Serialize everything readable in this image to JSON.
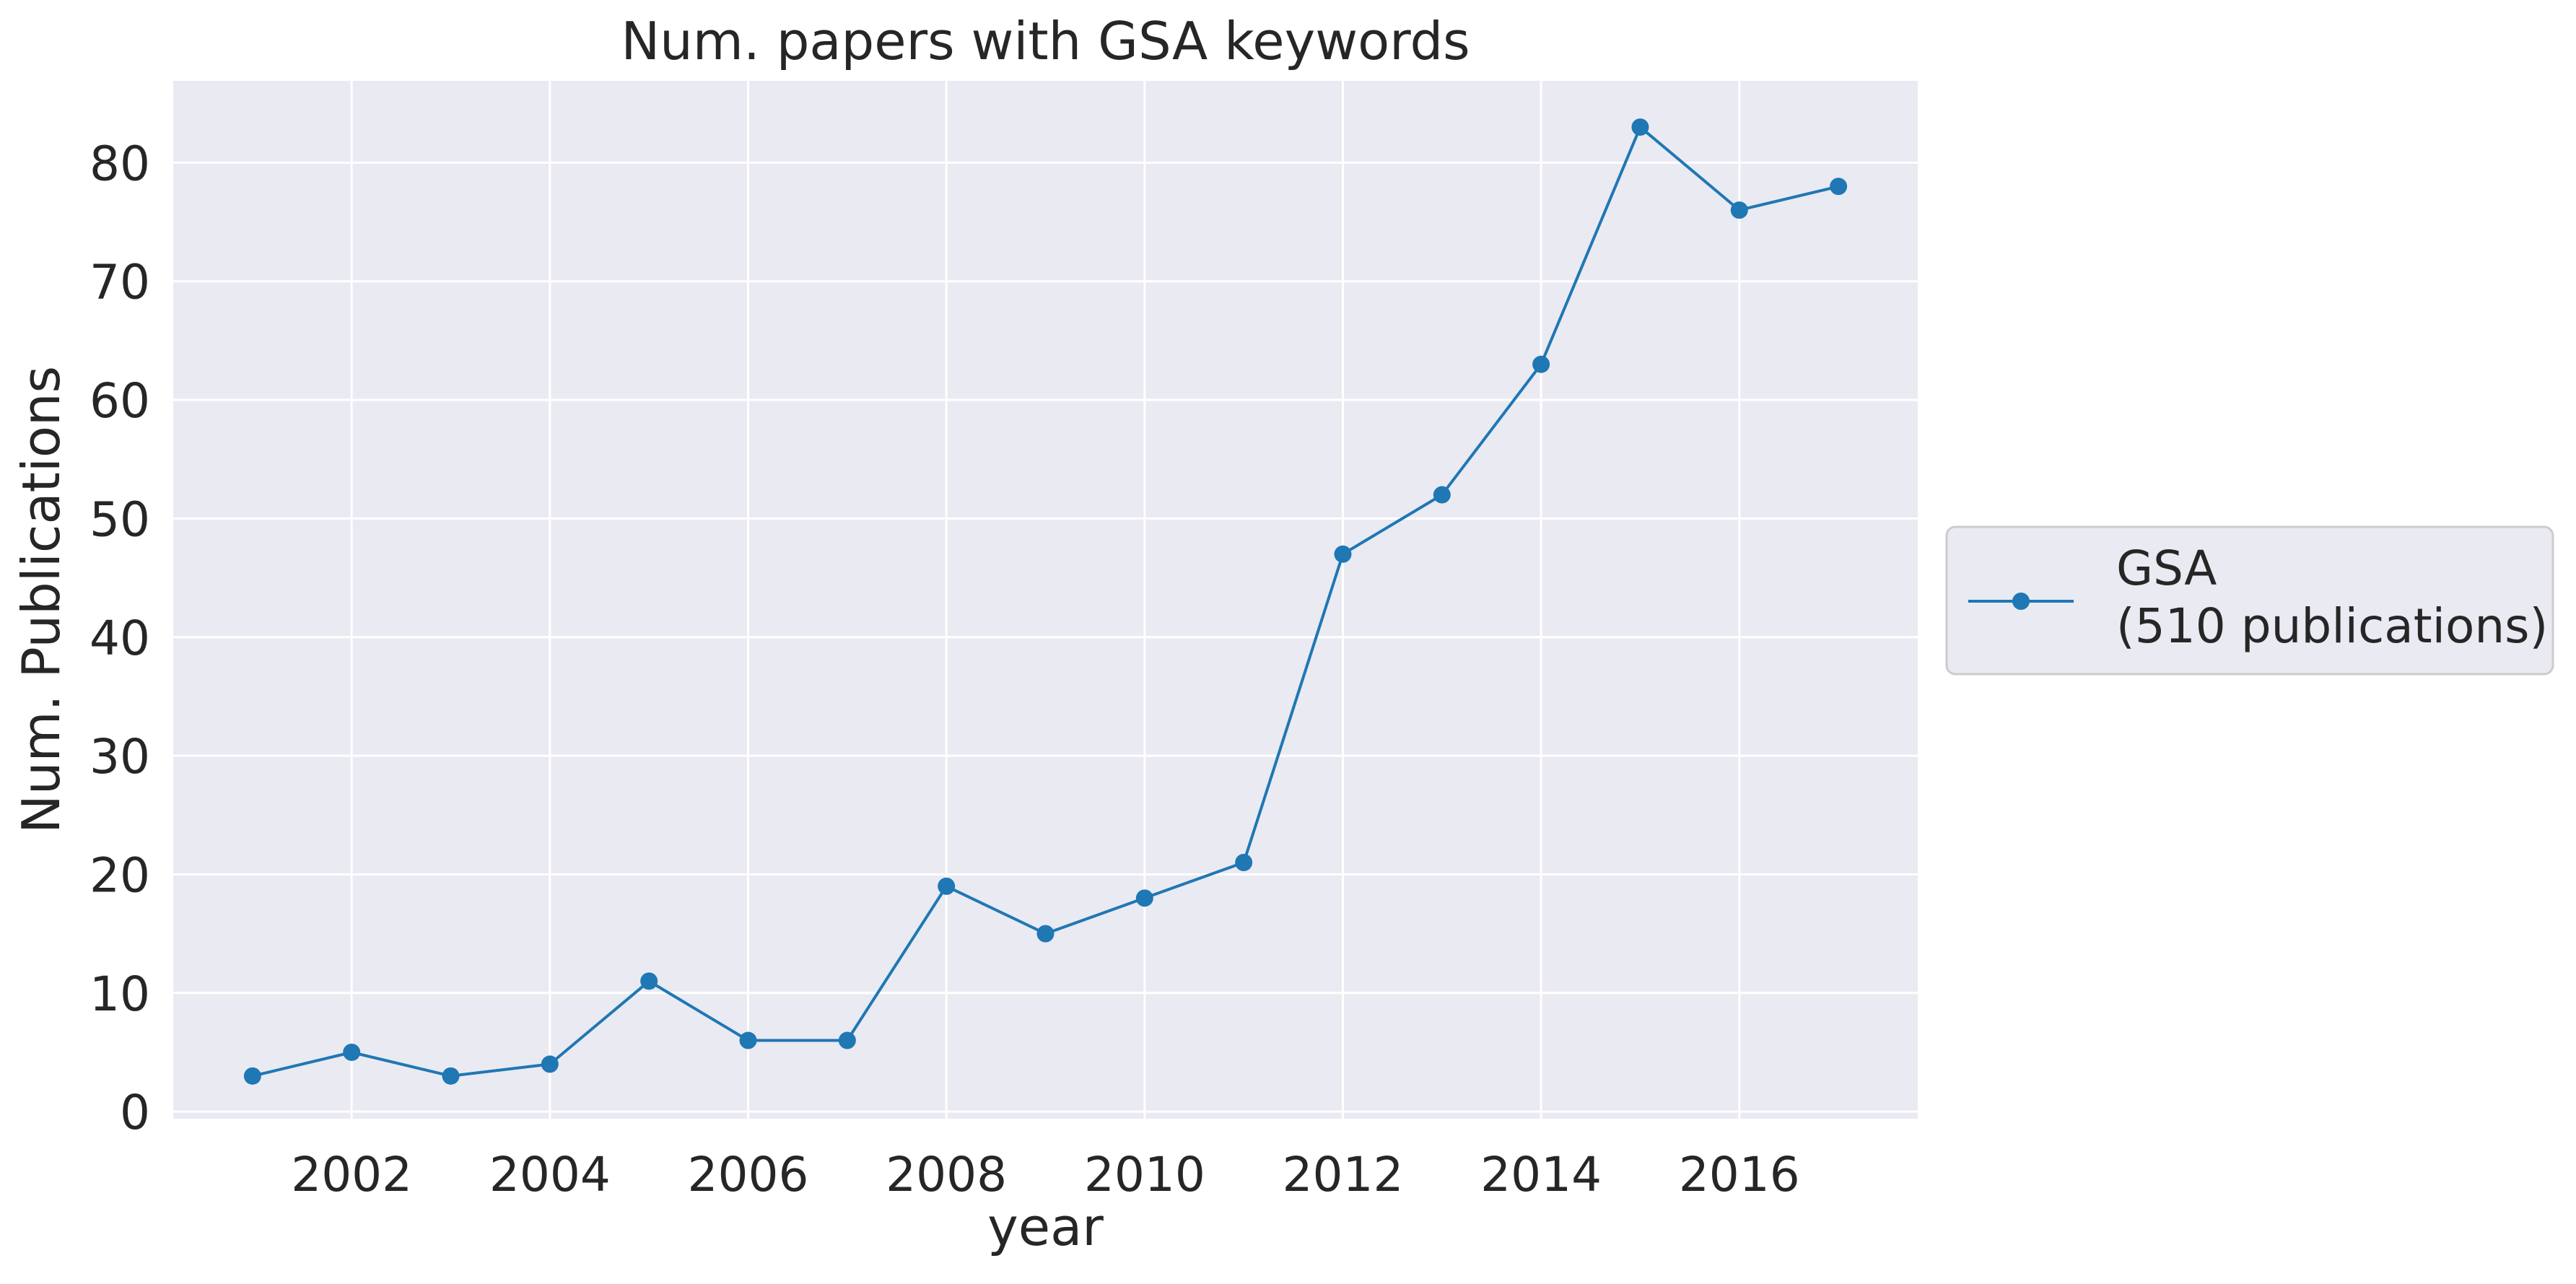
{
  "chart_data": {
    "type": "line",
    "title": "Num. papers with GSA keywords",
    "xlabel": "year",
    "ylabel": "Num. Publications",
    "x": [
      2001,
      2002,
      2003,
      2004,
      2005,
      2006,
      2007,
      2008,
      2009,
      2010,
      2011,
      2012,
      2013,
      2014,
      2015,
      2016,
      2017
    ],
    "series": [
      {
        "name": "GSA\n(510 publications)",
        "values": [
          3,
          5,
          3,
          4,
          11,
          6,
          6,
          19,
          15,
          18,
          21,
          47,
          52,
          63,
          83,
          76,
          78
        ],
        "color": "#1f77b4",
        "marker": "circle"
      }
    ],
    "xticks": [
      2002,
      2004,
      2006,
      2008,
      2010,
      2012,
      2014,
      2016
    ],
    "yticks": [
      0,
      10,
      20,
      30,
      40,
      50,
      60,
      70,
      80
    ],
    "xlim": [
      2000.2,
      2017.8
    ],
    "ylim": [
      -0.6,
      86.9
    ],
    "grid": true,
    "legend": {
      "placement": "center-right outside plot",
      "entries": [
        "GSA",
        "(510 publications)"
      ]
    },
    "colors": {
      "plot_background": "#eaeaf2",
      "grid": "#ffffff",
      "line": "#1f77b4",
      "text": "#262626"
    }
  }
}
